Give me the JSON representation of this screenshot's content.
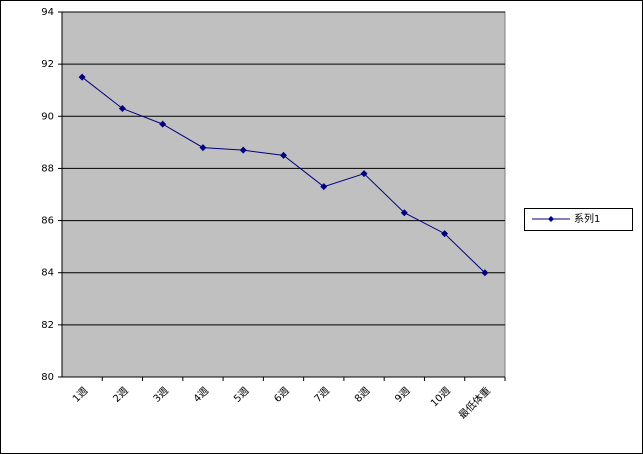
{
  "chart_data": {
    "type": "line",
    "categories": [
      "1週",
      "2週",
      "3週",
      "4週",
      "5週",
      "6週",
      "7週",
      "8週",
      "9週",
      "10週",
      "最低体重"
    ],
    "series": [
      {
        "name": "系列1",
        "color": "#000080",
        "values": [
          91.5,
          90.3,
          89.7,
          88.8,
          88.7,
          88.5,
          87.3,
          87.8,
          86.3,
          85.5,
          84.0
        ]
      }
    ],
    "ylim": [
      80,
      94
    ],
    "yticks": [
      80,
      82,
      84,
      86,
      88,
      90,
      92,
      94
    ],
    "grid": true,
    "legend": "right"
  }
}
